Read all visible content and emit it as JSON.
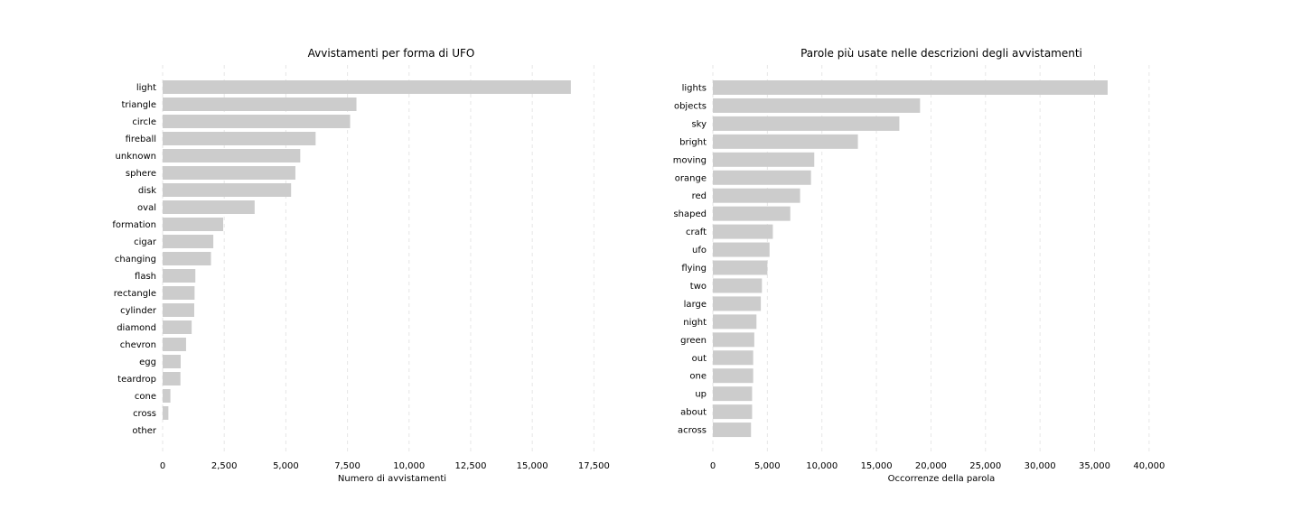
{
  "chart_data": [
    {
      "type": "bar",
      "orientation": "horizontal",
      "title": "Avvistamenti per forma di UFO",
      "xlabel": "Numero di avvistamenti",
      "ylabel": "",
      "xlim": [
        0,
        18000
      ],
      "xticks": [
        0,
        2500,
        5000,
        7500,
        10000,
        12500,
        15000,
        17500
      ],
      "xtick_labels": [
        "0",
        "2,500",
        "5,000",
        "7,500",
        "10,000",
        "12,500",
        "15,000",
        "17,500"
      ],
      "grid": "vertical dashed",
      "bar_color": "#cccccc",
      "categories": [
        "light",
        "triangle",
        "circle",
        "fireball",
        "unknown",
        "sphere",
        "disk",
        "oval",
        "formation",
        "cigar",
        "changing",
        "flash",
        "rectangle",
        "cylinder",
        "diamond",
        "chevron",
        "egg",
        "teardrop",
        "cone",
        "cross",
        "other"
      ],
      "values": [
        16565,
        7865,
        7608,
        6208,
        5584,
        5387,
        5213,
        3733,
        2457,
        2057,
        1962,
        1328,
        1297,
        1283,
        1178,
        952,
        733,
        723,
        316,
        233,
        0
      ]
    },
    {
      "type": "bar",
      "orientation": "horizontal",
      "title": "Parole più usate nelle descrizioni degli avvistamenti",
      "xlabel": "Occorrenze della parola",
      "ylabel": "",
      "xlim": [
        0,
        42000
      ],
      "xticks": [
        0,
        5000,
        10000,
        15000,
        20000,
        25000,
        30000,
        35000,
        40000
      ],
      "xtick_labels": [
        "0",
        "5,000",
        "10,000",
        "15,000",
        "20,000",
        "25,000",
        "30,000",
        "35,000",
        "40,000"
      ],
      "grid": "vertical dashed",
      "bar_color": "#cccccc",
      "categories": [
        "lights",
        "objects",
        "sky",
        "bright",
        "moving",
        "orange",
        "red",
        "shaped",
        "craft",
        "ufo",
        "flying",
        "two",
        "large",
        "night",
        "green",
        "out",
        "one",
        "up",
        "about",
        "across"
      ],
      "values": [
        36200,
        19000,
        17100,
        13300,
        9300,
        9000,
        8000,
        7100,
        5500,
        5200,
        5000,
        4500,
        4400,
        4000,
        3800,
        3700,
        3700,
        3600,
        3600,
        3500
      ]
    }
  ]
}
